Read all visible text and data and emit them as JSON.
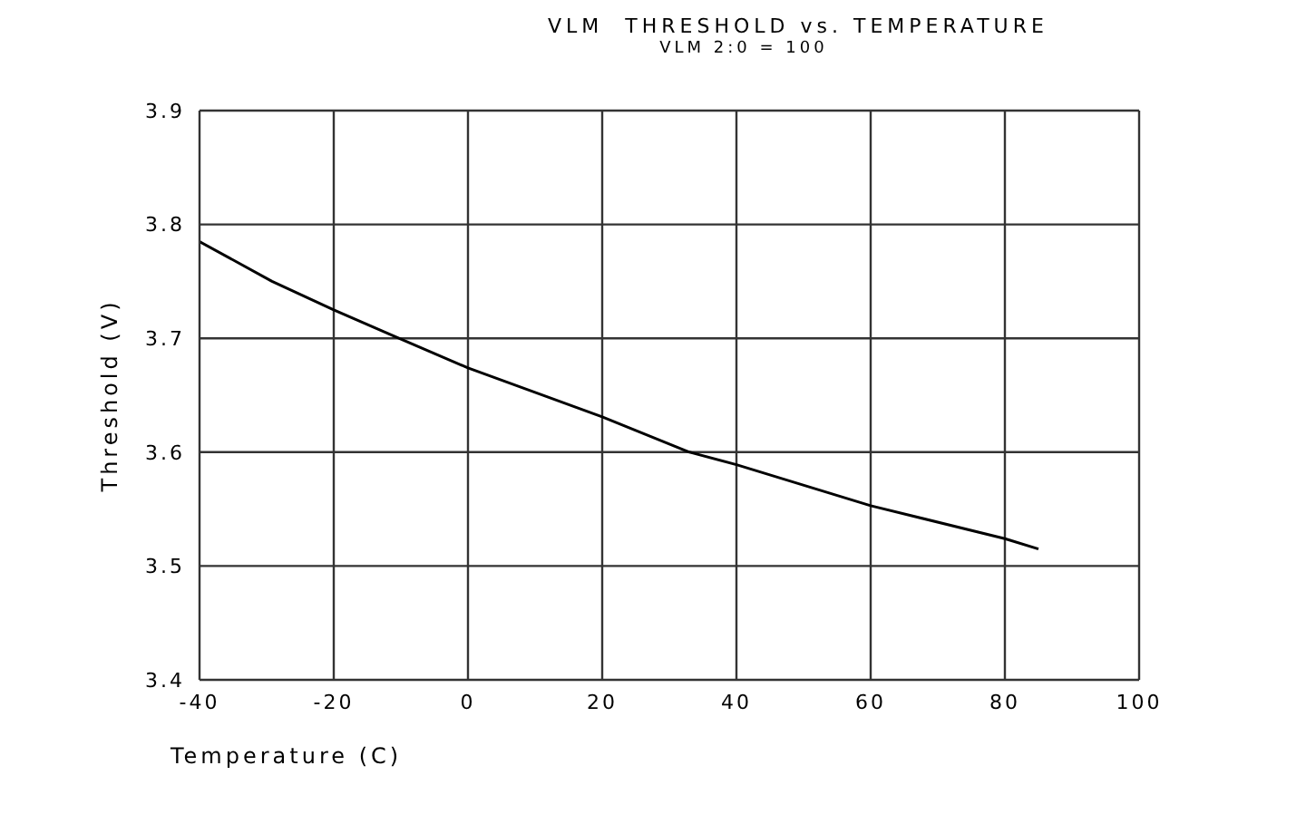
{
  "chart_data": {
    "type": "line",
    "title": "VLM  THRESHOLD vs. TEMPERATURE",
    "subtitle": "VLM 2:0 = 100",
    "xlabel": "Temperature (C)",
    "ylabel": "Threshold (V)",
    "series": [
      {
        "color": "#000000",
        "x": [
          -40,
          -29.2,
          -20,
          -10.3,
          0,
          20,
          33,
          40,
          60,
          80,
          85
        ],
        "values": [
          3.785,
          3.75,
          3.725,
          3.7,
          3.674,
          3.631,
          3.6,
          3.589,
          3.553,
          3.524,
          3.515
        ]
      }
    ],
    "xlim": [
      -40,
      100
    ],
    "xticks": [
      -40,
      -20,
      0,
      20,
      40,
      60,
      80,
      100
    ],
    "ylim": [
      3.4,
      3.9
    ],
    "yticks": [
      3.4,
      3.5,
      3.6,
      3.7,
      3.8,
      3.9
    ],
    "grid": true,
    "legend": false,
    "marker": "none",
    "line_style": "solid"
  }
}
